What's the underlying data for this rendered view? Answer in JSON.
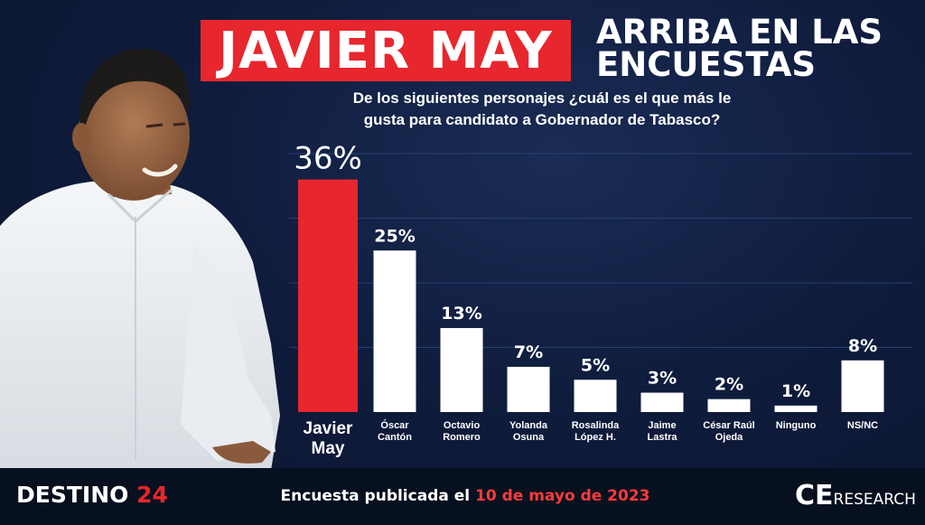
{
  "title": {
    "highlight": "JAVIER MAY",
    "line1": "ARRIBA EN LAS",
    "line2": "ENCUESTAS"
  },
  "question": {
    "part1": "De los siguientes personajes ¿cuál es el que más le",
    "part2": "gusta para candidato a ",
    "emphasis": "Gobernador de Tabasco",
    "end": "?"
  },
  "chart_data": {
    "type": "bar",
    "categories": [
      [
        "Javier",
        "May"
      ],
      [
        "Óscar",
        "Cantón"
      ],
      [
        "Octavio",
        "Romero"
      ],
      [
        "Yolanda",
        "Osuna"
      ],
      [
        "Rosalinda",
        "López H."
      ],
      [
        "Jaime",
        "Lastra"
      ],
      [
        "César Raúl",
        "Ojeda"
      ],
      [
        "Ninguno"
      ],
      [
        "NS/NC"
      ]
    ],
    "values": [
      36,
      25,
      13,
      7,
      5,
      3,
      2,
      1,
      8
    ],
    "labels": [
      "36%",
      "25%",
      "13%",
      "7%",
      "5%",
      "3%",
      "2%",
      "1%",
      "8%"
    ],
    "highlight_index": 0,
    "ylim": [
      0,
      40
    ],
    "grid": true,
    "colors": {
      "highlight": "#e8262d",
      "default": "#ffffff",
      "grid": "#24406e"
    }
  },
  "footer": {
    "brand_left_1": "DESTINO",
    "brand_left_2": "24",
    "text_prefix": "Encuesta publicada el",
    "text_date": "10 de mayo de 2023",
    "brand_right_1": "CE",
    "brand_right_2": "RESEARCH"
  },
  "colors": {
    "accent": "#e8262d",
    "background": "#0f1c3d"
  }
}
